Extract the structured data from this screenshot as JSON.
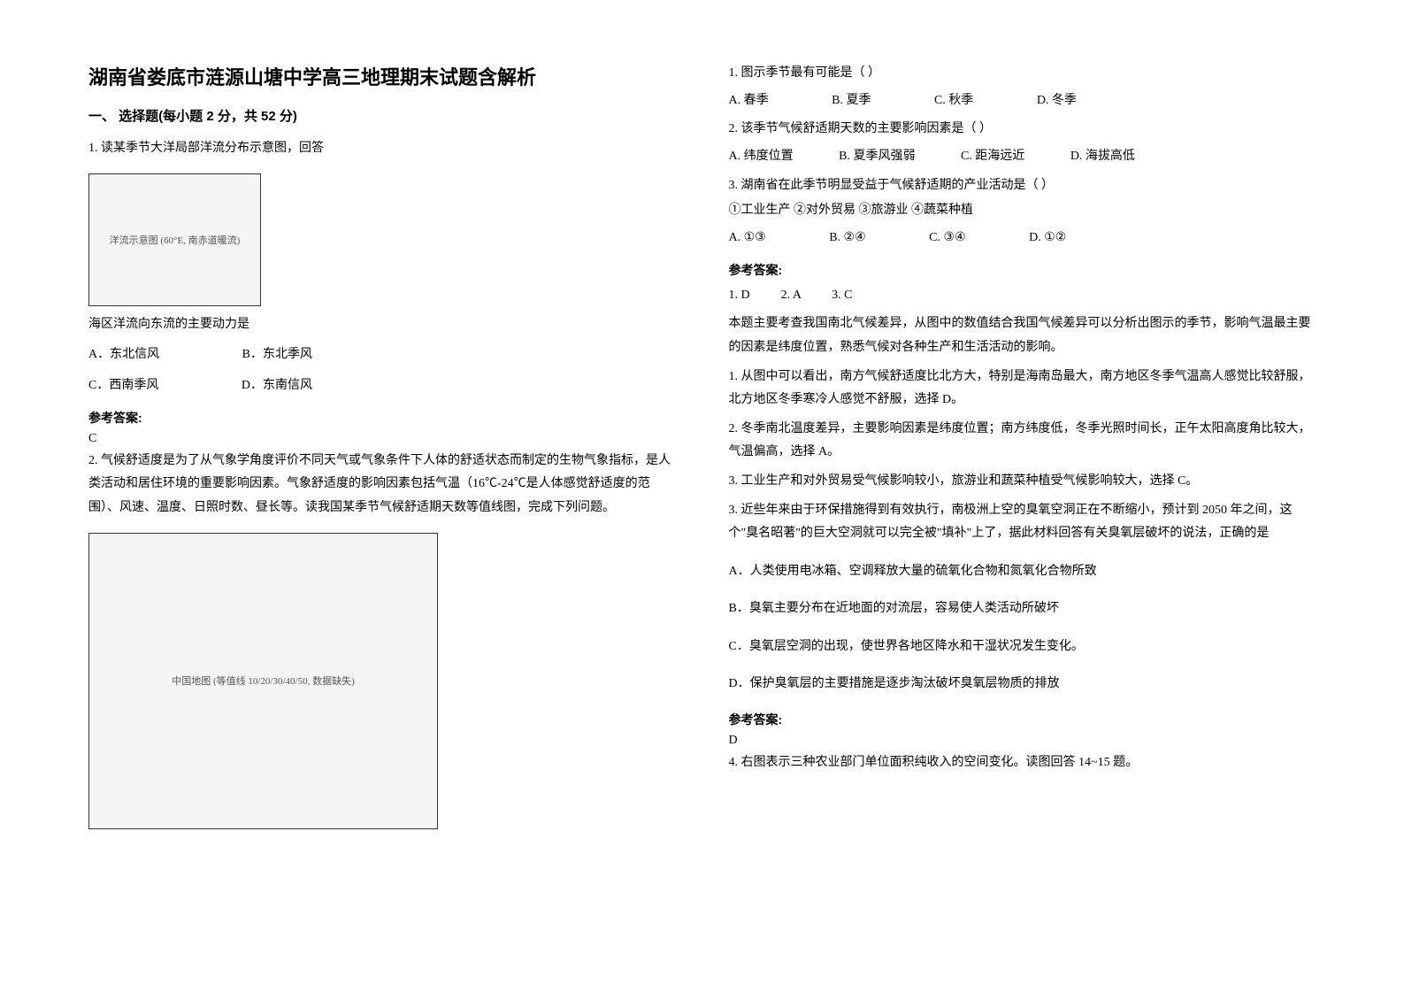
{
  "title": "湖南省娄底市涟源山塘中学高三地理期末试题含解析",
  "section1_heading": "一、 选择题(每小题 2 分，共 52 分)",
  "q1": {
    "stem": "1. 读某季节大洋局部洋流分布示意图，回答",
    "figure_label": "洋流示意图 (60°E, 南赤道暖流)",
    "sub": "海区洋流向东流的主要动力是",
    "optA": "A．东北信风",
    "optB": "B．东北季风",
    "optC": "C．西南季风",
    "optD": "D．东南信风",
    "answer_label": "参考答案:",
    "answer": "C"
  },
  "q2": {
    "stem": "2. 气候舒适度是为了从气象学角度评价不同天气或气象条件下人体的舒适状态而制定的生物气象指标，是人类活动和居住环境的重要影响因素。气象舒适度的影响因素包括气温（16℃-24℃是人体感觉舒适度的范围）、风速、温度、日照时数、昼长等。读我国某季节气候舒适期天数等值线图，完成下列问题。",
    "figure_label": "中国地图 (等值线 10/20/30/40/50, 数据缺失)",
    "sub1": {
      "stem": "1. 图示季节最有可能是（        ）",
      "optA": "A. 春季",
      "optB": "B. 夏季",
      "optC": "C. 秋季",
      "optD": "D. 冬季"
    },
    "sub2": {
      "stem": "2. 该季节气候舒适期天数的主要影响因素是（        ）",
      "optA": "A. 纬度位置",
      "optB": "B. 夏季风强弱",
      "optC": "C. 距海远近",
      "optD": "D. 海拔高低"
    },
    "sub3": {
      "stem": "3. 湖南省在此季节明显受益于气候舒适期的产业活动是（        ）",
      "choices": "①工业生产    ②对外贸易       ③旅游业       ④蔬菜种植",
      "optA": "A. ①③",
      "optB": "B. ②④",
      "optC": "C. ③④",
      "optD": "D. ①②"
    },
    "answer_label": "参考答案:",
    "answers": "1. D          2. A          3. C",
    "explain_intro": "本题主要考查我国南北气候差异，从图中的数值结合我国气候差异可以分析出图示的季节，影响气温最主要的因素是纬度位置，熟悉气候对各种生产和生活活动的影响。",
    "explain1": "1. 从图中可以看出，南方气候舒适度比北方大，特别是海南岛最大，南方地区冬季气温高人感觉比较舒服，北方地区冬季寒冷人感觉不舒服，选择 D。",
    "explain2": "2. 冬季南北温度差异，主要影响因素是纬度位置；南方纬度低，冬季光照时间长，正午太阳高度角比较大，气温偏高，选择 A。",
    "explain3": "3. 工业生产和对外贸易受气候影响较小，旅游业和蔬菜种植受气候影响较大，选择 C。"
  },
  "q3": {
    "stem": "3. 近些年来由于环保措施得到有效执行，南极洲上空的臭氧空洞正在不断缩小，预计到 2050 年之间，这个\"臭名昭著\"的巨大空洞就可以完全被\"填补\"上了，据此材料回答有关臭氧层破坏的说法，正确的是",
    "optA": "A．人类使用电冰箱、空调释放大量的硫氧化合物和氮氧化合物所致",
    "optB": "B．臭氧主要分布在近地面的对流层，容易使人类活动所破坏",
    "optC": "C．臭氧层空洞的出现，使世界各地区降水和干湿状况发生变化。",
    "optD": "D．保护臭氧层的主要措施是逐步淘汰破坏臭氧层物质的排放",
    "answer_label": "参考答案:",
    "answer": "D"
  },
  "q4": {
    "stem": "4. 右图表示三种农业部门单位面积纯收入的空间变化。读图回答 14~15 题。"
  }
}
